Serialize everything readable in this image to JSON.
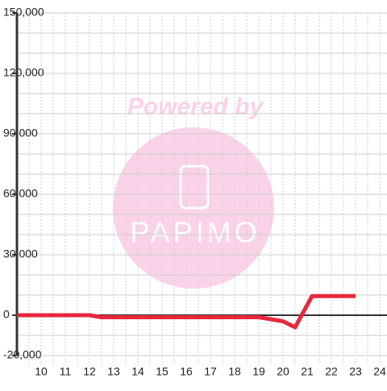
{
  "chart_data": {
    "type": "line",
    "x": [
      9,
      12,
      12.5,
      19,
      19.5,
      20,
      20.5,
      21.2,
      23
    ],
    "series": [
      {
        "color": "#e8283c",
        "values": [
          0,
          0,
          -1000,
          -1000,
          -2000,
          -3000,
          -6000,
          9500,
          9500
        ]
      }
    ],
    "xlim": [
      9,
      24.3
    ],
    "xticks": [
      10,
      11,
      12,
      13,
      14,
      15,
      16,
      17,
      18,
      19,
      20,
      21,
      22,
      23,
      24
    ],
    "xminorticks": [
      9.5,
      10.5,
      11.5,
      12.5,
      13.5,
      14.5,
      15.5,
      16.5,
      17.5,
      18.5,
      19.5,
      20.5,
      21.5,
      22.5,
      23.5
    ],
    "ylim": [
      -20000,
      150000
    ],
    "yticks": [
      {
        "value": -20000,
        "label": "-20,000"
      },
      0,
      {
        "value": 30000,
        "label": "30,000"
      },
      {
        "value": 60000,
        "label": "60,000"
      },
      {
        "value": 90000,
        "label": "90,000"
      },
      {
        "value": 120000,
        "label": "120,000"
      },
      {
        "value": 150000,
        "label": "150,000"
      }
    ],
    "yminorticks": [
      -10000,
      10000,
      20000,
      40000,
      50000,
      70000,
      80000,
      100000,
      110000,
      130000,
      140000
    ],
    "grid": true,
    "watermark": {
      "line1": "Powered by",
      "line2": "PAPIMO"
    }
  }
}
